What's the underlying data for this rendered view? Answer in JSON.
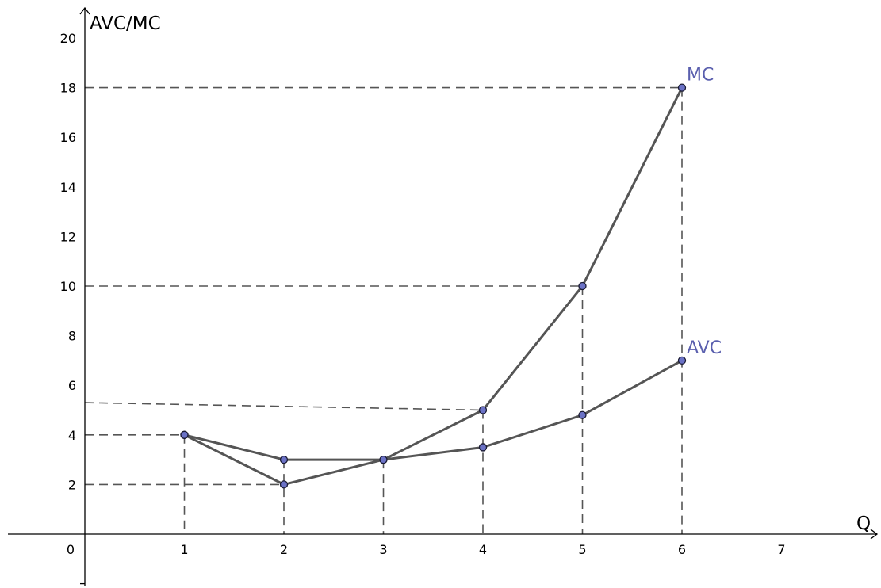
{
  "chart_data": {
    "type": "line",
    "xlabel": "Q",
    "ylabel": "AVC/MC",
    "xlim": [
      0,
      7.8
    ],
    "ylim": [
      -2,
      21
    ],
    "x_ticks": [
      1,
      2,
      3,
      4,
      5,
      6,
      7
    ],
    "x_tick_labels": [
      "1",
      "2",
      "3",
      "4",
      "5",
      "6",
      "7"
    ],
    "y_ticks": [
      2,
      4,
      6,
      8,
      10,
      12,
      14,
      16,
      18,
      20
    ],
    "y_tick_labels": [
      "2",
      "4",
      "6",
      "8",
      "10",
      "12",
      "14",
      "16",
      "18",
      "20"
    ],
    "origin_label": "0",
    "grid": false,
    "series": [
      {
        "name": "MC",
        "x": [
          1,
          2,
          3,
          4,
          5,
          6
        ],
        "values": [
          4,
          2,
          3,
          5,
          10,
          18
        ]
      },
      {
        "name": "AVC",
        "x": [
          1,
          2,
          3,
          4,
          5,
          6
        ],
        "values": [
          4,
          3,
          3,
          3.5,
          4.8,
          7
        ]
      }
    ],
    "guide_lines": {
      "vertical_from_points": [
        [
          1,
          4
        ],
        [
          2,
          3
        ],
        [
          3,
          3
        ],
        [
          4,
          5
        ],
        [
          5,
          10
        ],
        [
          6,
          18
        ]
      ],
      "horizontal_to_y_axis": [
        [
          1,
          4
        ],
        [
          2,
          2
        ],
        [
          5,
          10
        ],
        [
          6,
          18
        ]
      ],
      "sloped_to_y_axis": {
        "from": [
          4,
          5
        ],
        "y_at_axis": 5.3
      }
    },
    "colors": {
      "line": "#555555",
      "marker_fill": "#6b72c6",
      "marker_stroke": "#1a1a33",
      "series_label": "#5a5fae",
      "guide": "#555555",
      "axis": "#000000"
    }
  }
}
